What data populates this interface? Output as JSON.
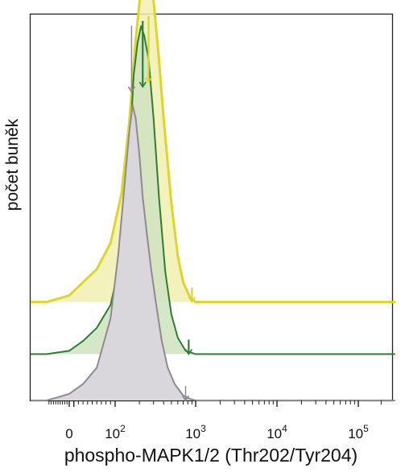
{
  "chart_data": {
    "type": "area",
    "title": "",
    "xlabel": "phospho-MAPK1/2 (Thr202/Tyr204)",
    "ylabel": "počet buněk",
    "x_scale": "biexponential",
    "xlim": [
      -100,
      300000
    ],
    "grid": false,
    "legend": "none",
    "x_ticks": [
      {
        "value": 0,
        "base": "0",
        "exp": ""
      },
      {
        "value": 100,
        "base": "10",
        "exp": "2"
      },
      {
        "value": 1000,
        "base": "10",
        "exp": "3"
      },
      {
        "value": 10000,
        "base": "10",
        "exp": "4"
      },
      {
        "value": 100000,
        "base": "10",
        "exp": "5"
      }
    ],
    "series": [
      {
        "color": "#dcd62b",
        "fill": "#f1efb0",
        "offset": 0.255,
        "x": [
          -100,
          0,
          30,
          60,
          90,
          120,
          150,
          180,
          210,
          250,
          300,
          350,
          400,
          500,
          600,
          700,
          850,
          1000,
          300000
        ],
        "values": [
          0.0,
          0.02,
          0.06,
          0.1,
          0.18,
          0.33,
          0.55,
          0.8,
          0.96,
          1.0,
          0.92,
          0.74,
          0.56,
          0.3,
          0.14,
          0.06,
          0.015,
          0.0,
          0.0
        ],
        "marker_x": [
          260,
          900
        ]
      },
      {
        "color": "#2e7d32",
        "fill": "#cfe3bf",
        "offset": 0.12,
        "x": [
          -100,
          0,
          30,
          60,
          90,
          120,
          150,
          170,
          190,
          210,
          230,
          260,
          300,
          350,
          420,
          500,
          600,
          750,
          1000,
          300000
        ],
        "values": [
          0.0,
          0.01,
          0.04,
          0.08,
          0.15,
          0.3,
          0.6,
          0.85,
          0.95,
          1.0,
          0.97,
          0.9,
          0.72,
          0.48,
          0.25,
          0.12,
          0.05,
          0.01,
          0.0,
          0.0
        ],
        "marker_x": [
          220,
          820
        ]
      },
      {
        "color": "#8e8a91",
        "fill": "#d9d7dc",
        "offset": 0.0,
        "x": [
          -100,
          -50,
          0,
          30,
          60,
          90,
          110,
          130,
          150,
          165,
          180,
          200,
          220,
          250,
          280,
          320,
          380,
          450,
          550,
          700,
          850,
          1000,
          300000
        ],
        "values": [
          0.0,
          0.01,
          0.02,
          0.05,
          0.1,
          0.25,
          0.45,
          0.65,
          0.82,
          0.9,
          0.86,
          0.75,
          0.62,
          0.5,
          0.4,
          0.3,
          0.18,
          0.1,
          0.05,
          0.015,
          0.005,
          0.0,
          0.0
        ],
        "marker_x": [
          160,
          750
        ]
      }
    ]
  }
}
